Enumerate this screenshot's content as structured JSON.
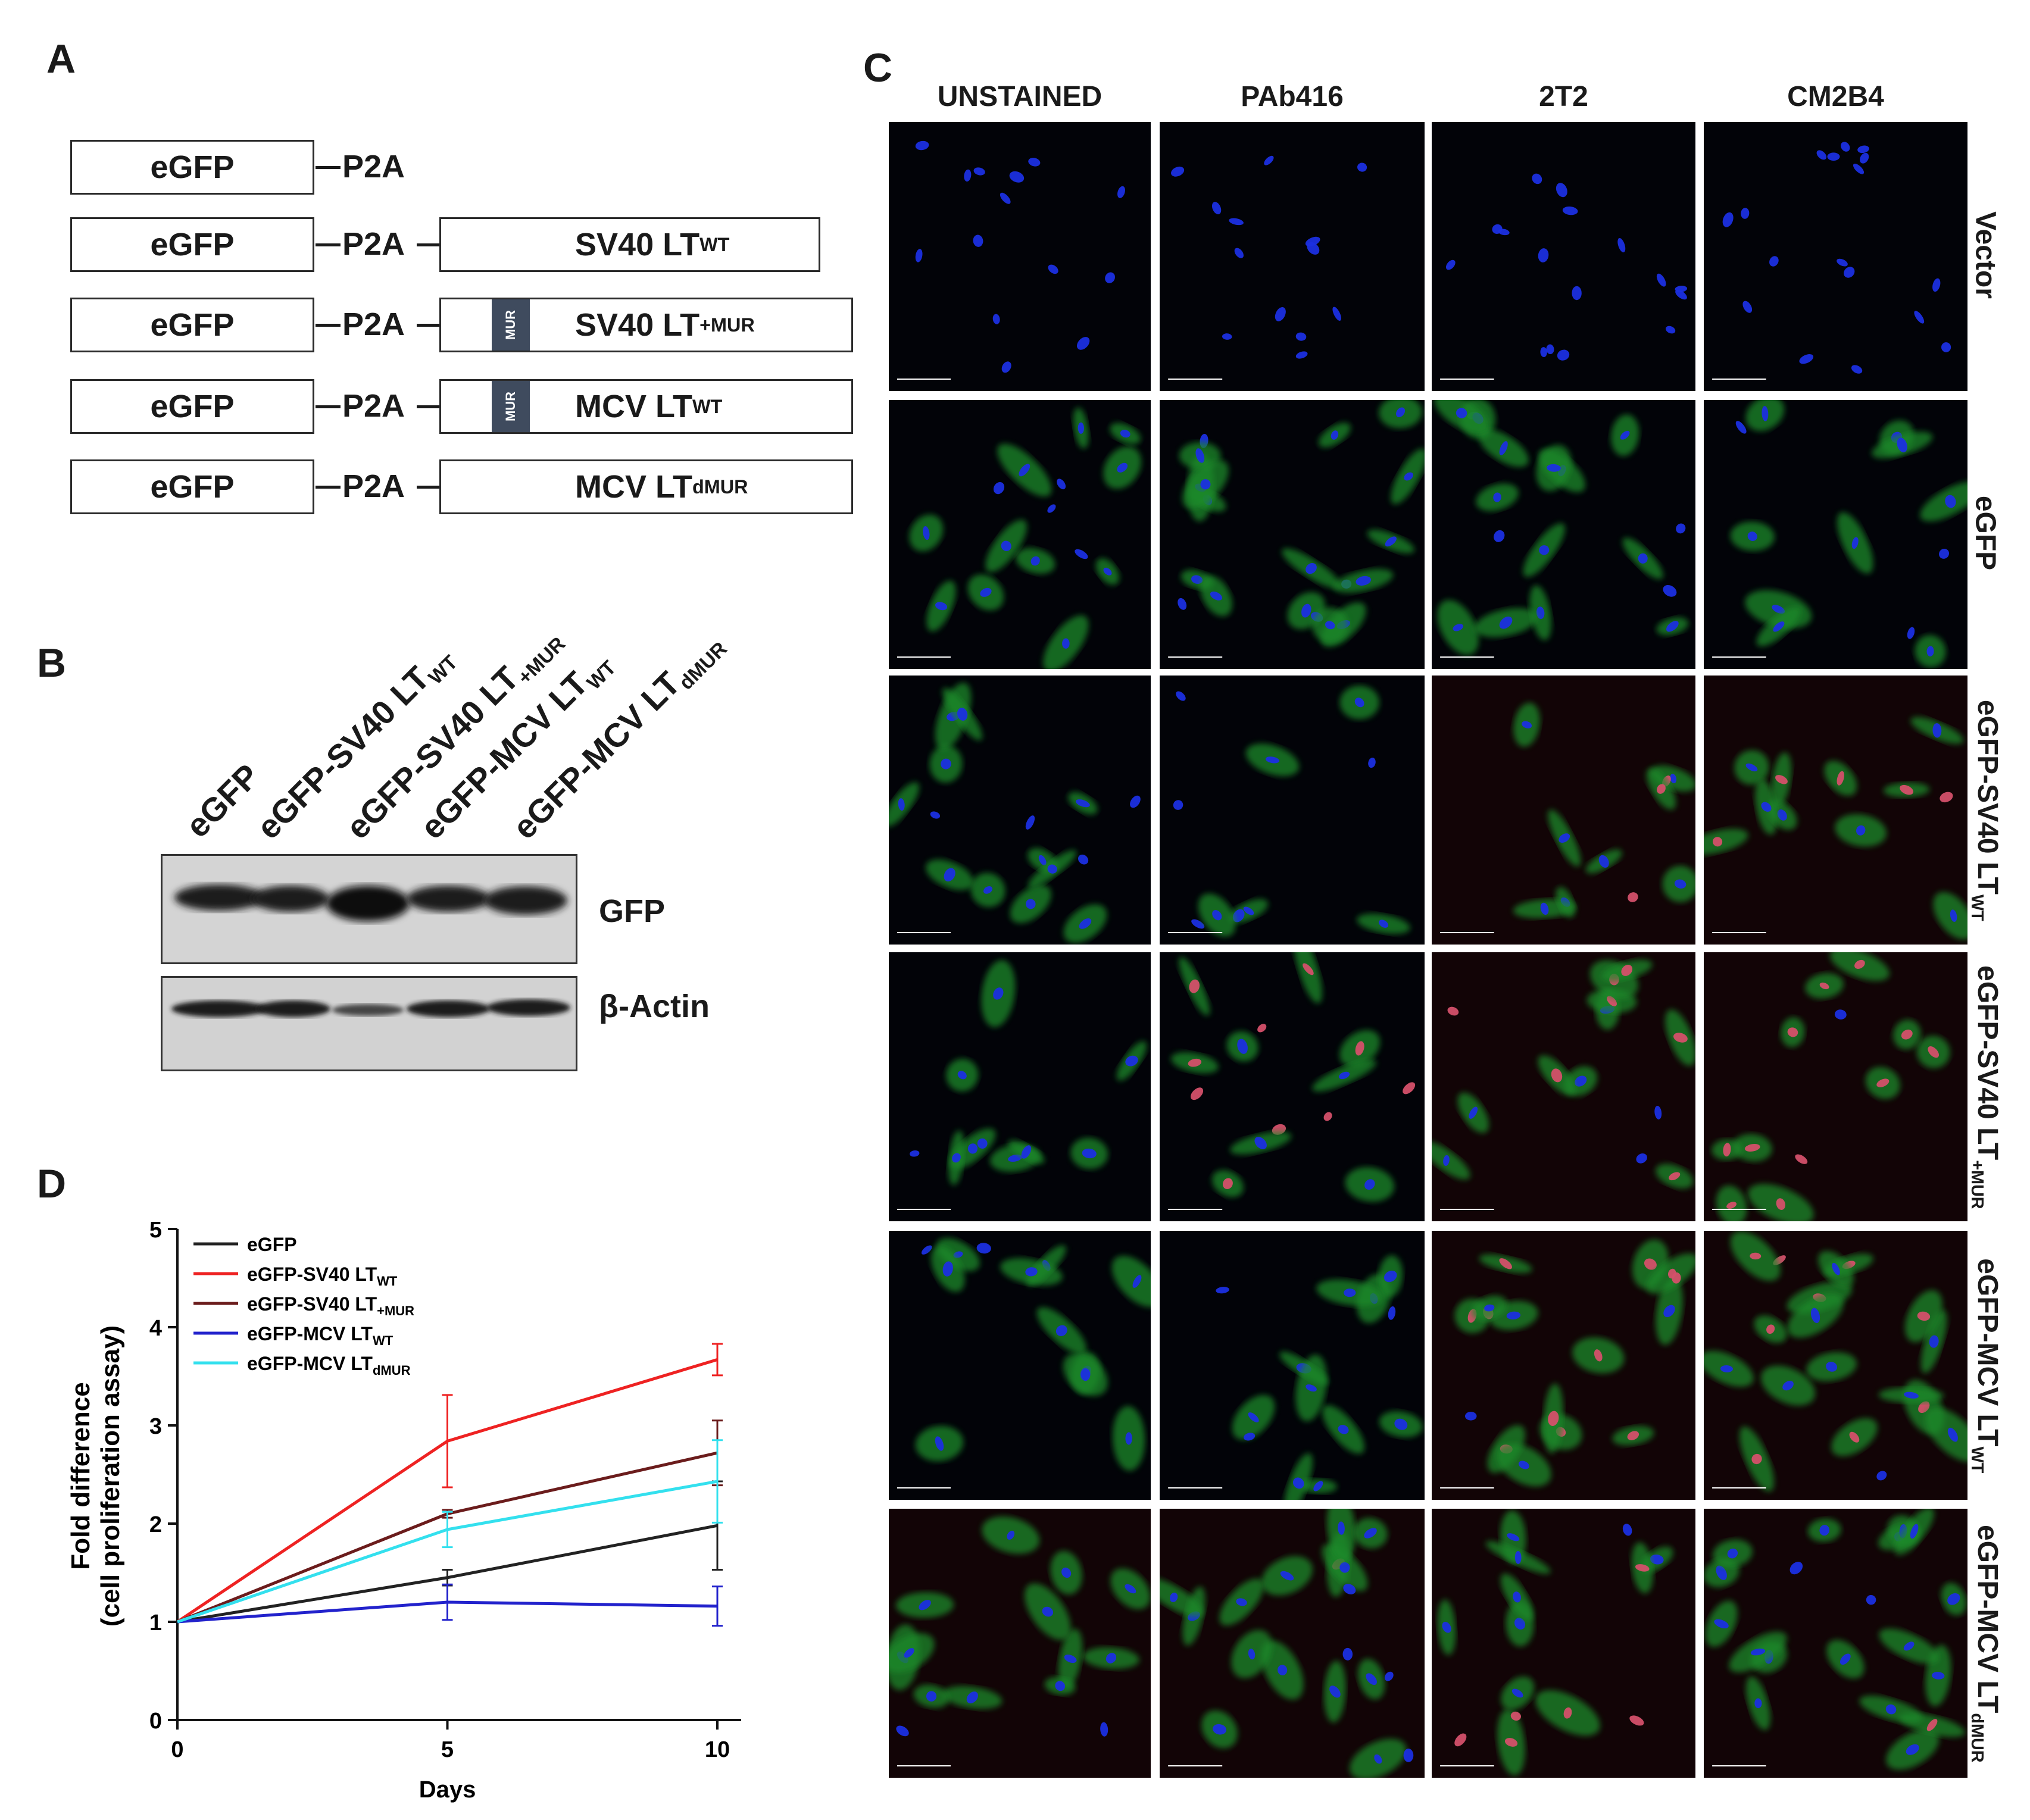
{
  "panels": {
    "a": "A",
    "b": "B",
    "c": "C",
    "d": "D"
  },
  "constructs": [
    {
      "egfp": "eGFP",
      "p2a": "P2A",
      "lt_main": "",
      "lt_sub": "",
      "mur": false
    },
    {
      "egfp": "eGFP",
      "p2a": "P2A",
      "lt_main": "SV40 LT",
      "lt_sub": "WT",
      "mur": false
    },
    {
      "egfp": "eGFP",
      "p2a": "P2A",
      "lt_main": "SV40 LT",
      "lt_sub": "+MUR",
      "mur": true
    },
    {
      "egfp": "eGFP",
      "p2a": "P2A",
      "lt_main": "MCV LT",
      "lt_sub": "WT",
      "mur": true
    },
    {
      "egfp": "eGFP",
      "p2a": "P2A",
      "lt_main": "MCV LT",
      "lt_sub": "dMUR",
      "mur": false
    }
  ],
  "mur_label": "MUR",
  "blot": {
    "lanes": [
      {
        "main": "eGFP",
        "sub": ""
      },
      {
        "main": "eGFP-SV40 LT",
        "sub": "WT"
      },
      {
        "main": "eGFP-SV40 LT",
        "sub": "+MUR"
      },
      {
        "main": "eGFP-MCV LT",
        "sub": "WT"
      },
      {
        "main": "eGFP-MCV LT",
        "sub": "dMUR"
      }
    ],
    "gfp_label": "GFP",
    "actin_label": "β-Actin"
  },
  "microscopy": {
    "columns": [
      "UNSTAINED",
      "PAb416",
      "2T2",
      "CM2B4"
    ],
    "rows": [
      {
        "main": "Vector",
        "sub": ""
      },
      {
        "main": "eGFP",
        "sub": ""
      },
      {
        "main": "eGFP-SV40 LT",
        "sub": "WT"
      },
      {
        "main": "eGFP-SV40 LT",
        "sub": "+MUR"
      },
      {
        "main": "eGFP-MCV LT",
        "sub": "WT"
      },
      {
        "main": "eGFP-MCV LT",
        "sub": "dMUR"
      }
    ]
  },
  "chart_data": {
    "type": "line",
    "xlabel": "Days",
    "ylabel_line1": "Fold difference",
    "ylabel_line2": "(cell proliferation assay)",
    "x": [
      0,
      5,
      10
    ],
    "xlim": [
      0,
      10
    ],
    "ylim": [
      0,
      5
    ],
    "xticks": [
      0,
      5,
      10
    ],
    "yticks": [
      0,
      1,
      2,
      3,
      4,
      5
    ],
    "grid": false,
    "legend_position": "top-left",
    "series": [
      {
        "name": "eGFP",
        "sub": "",
        "color": "#222222",
        "values": [
          1.0,
          1.45,
          1.98
        ],
        "errors": [
          0,
          0.08,
          0.45
        ]
      },
      {
        "name": "eGFP-SV40 LT",
        "sub": "WT",
        "color": "#ee2222",
        "values": [
          1.0,
          2.84,
          3.67
        ],
        "errors": [
          0,
          0.47,
          0.16
        ]
      },
      {
        "name": "eGFP-SV40 LT",
        "sub": "+MUR",
        "color": "#6b1c1c",
        "values": [
          1.0,
          2.1,
          2.72
        ],
        "errors": [
          0,
          0.04,
          0.33
        ]
      },
      {
        "name": "eGFP-MCV LT",
        "sub": "WT",
        "color": "#2222cc",
        "values": [
          1.0,
          1.2,
          1.16
        ],
        "errors": [
          0,
          0.18,
          0.2
        ]
      },
      {
        "name": "eGFP-MCV LT",
        "sub": "dMUR",
        "color": "#33e0ee",
        "values": [
          1.0,
          1.94,
          2.43
        ],
        "errors": [
          0,
          0.18,
          0.42
        ]
      }
    ]
  }
}
